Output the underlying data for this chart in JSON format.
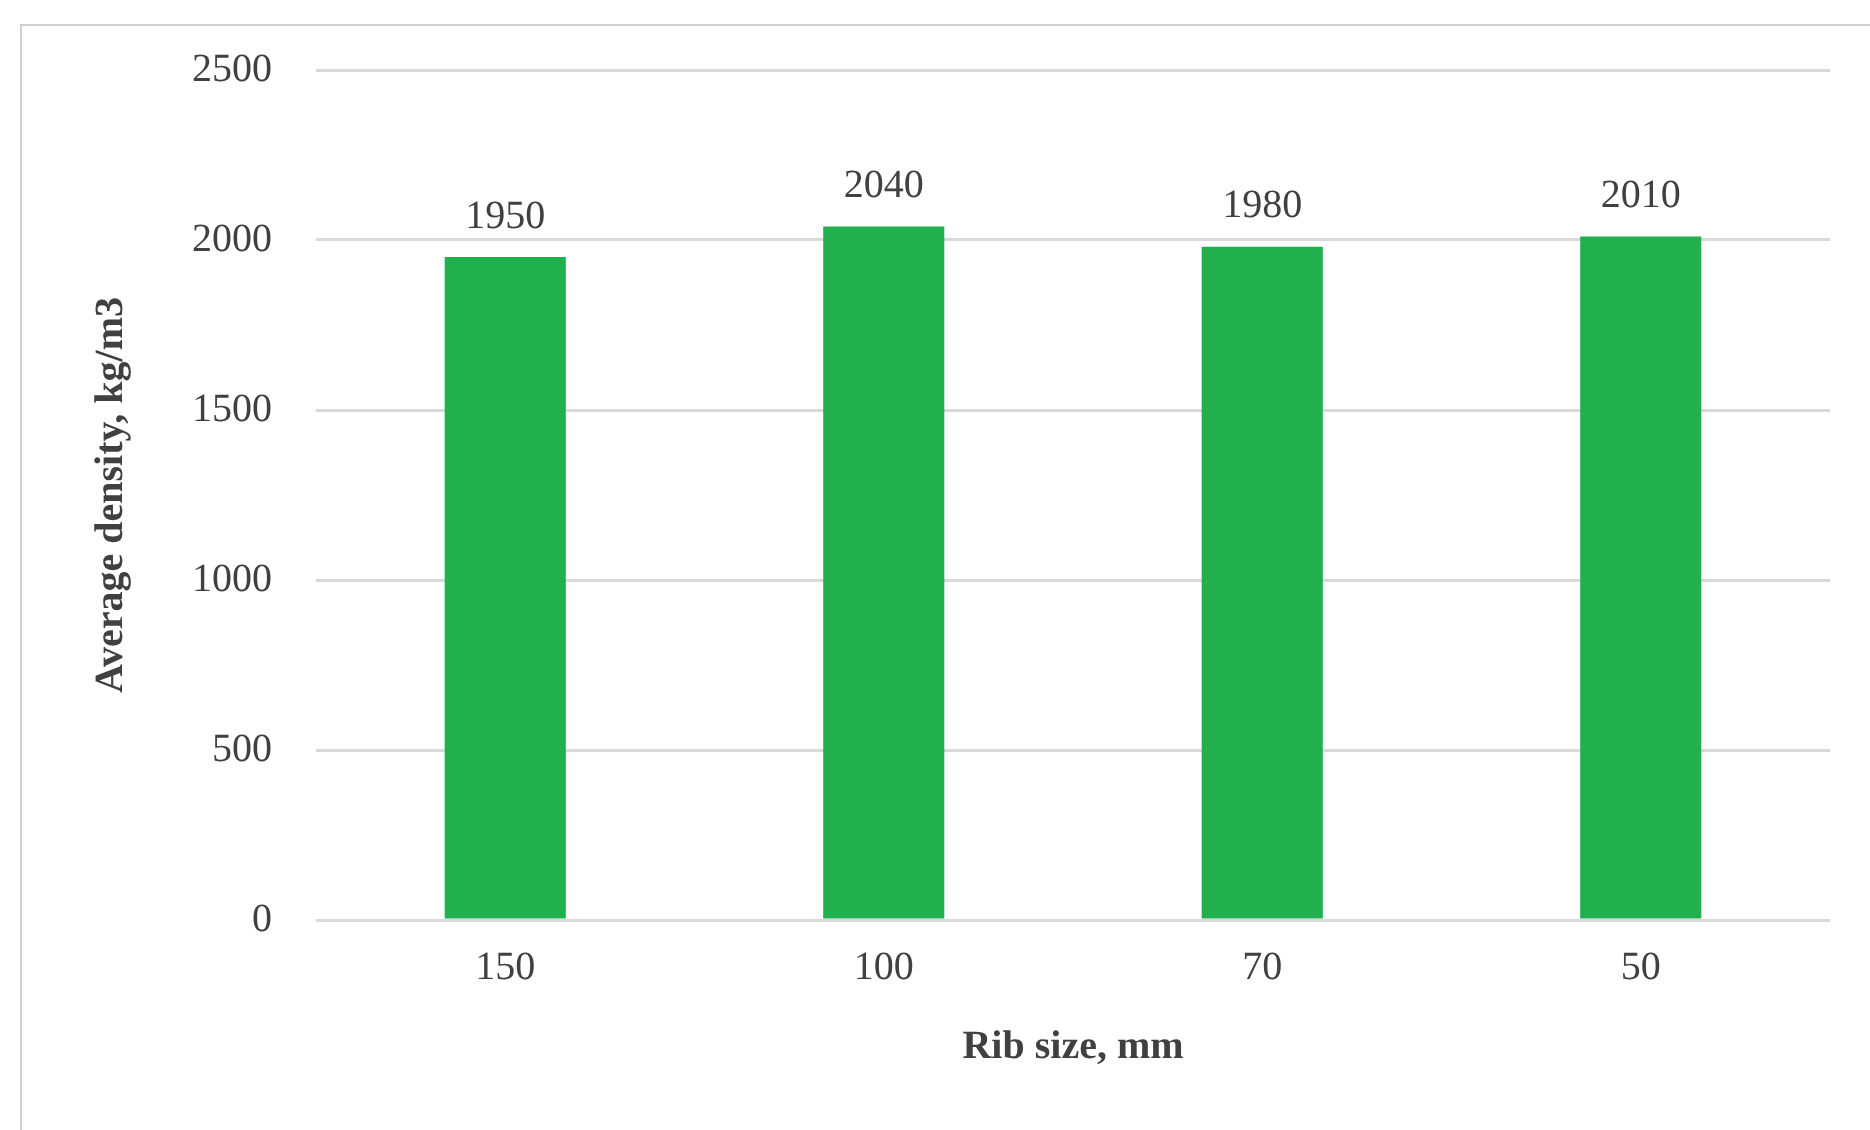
{
  "chart_data": {
    "type": "bar",
    "xlabel": "Rib size, mm",
    "ylabel": "Average density, kg/m3",
    "categories": [
      "150",
      "100",
      "70",
      "50"
    ],
    "values": [
      1950,
      2040,
      1980,
      2010
    ],
    "color": "#22b04f",
    "ylim": [
      0,
      2500
    ],
    "yticks": [
      0,
      500,
      1000,
      1500,
      2000,
      2500
    ],
    "grid": "y",
    "data_labels": true
  }
}
